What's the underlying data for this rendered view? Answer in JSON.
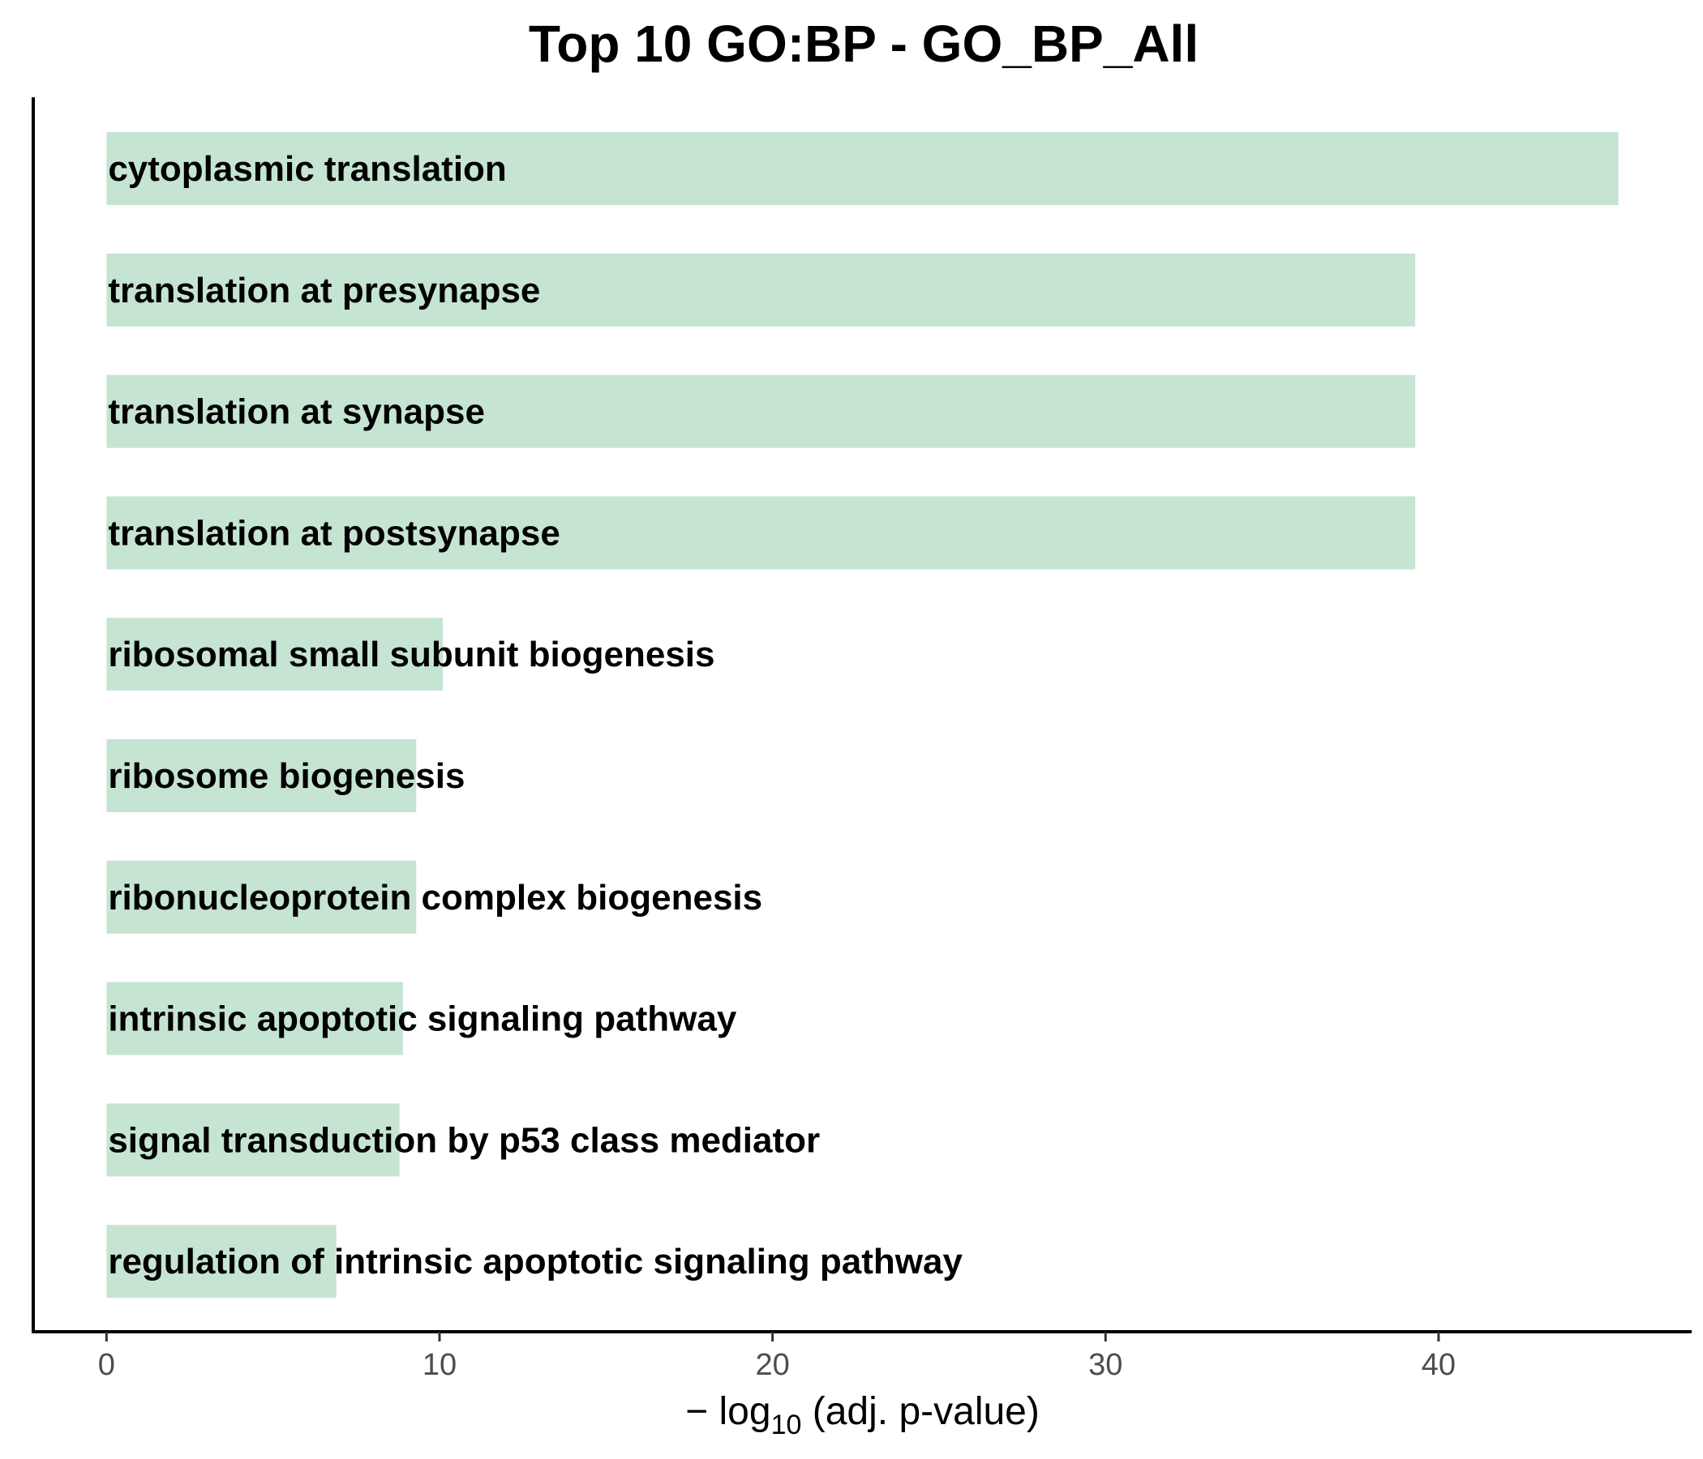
{
  "chart_data": {
    "type": "bar",
    "orientation": "horizontal",
    "title": "Top 10 GO:BP - GO_BP_All",
    "xlabel": {
      "prefix": "− log",
      "subscript": "10",
      "suffix": " (adj. p-value)"
    },
    "ylabel": "",
    "xlim": [
      -2.2,
      47.6
    ],
    "xticks": [
      0,
      10,
      20,
      30,
      40
    ],
    "grid": false,
    "legend": "none",
    "bar_color": "#c6e4d2",
    "categories": [
      "cytoplasmic translation",
      "translation at presynapse",
      "translation at synapse",
      "translation at postsynapse",
      "ribosomal small subunit biogenesis",
      "ribosome biogenesis",
      "ribonucleoprotein complex biogenesis",
      "intrinsic apoptotic signaling pathway",
      "signal transduction by p53 class mediator",
      "regulation of intrinsic apoptotic signaling pathway"
    ],
    "values": [
      45.4,
      39.3,
      39.3,
      39.3,
      10.1,
      9.3,
      9.3,
      8.9,
      8.8,
      6.9
    ]
  }
}
